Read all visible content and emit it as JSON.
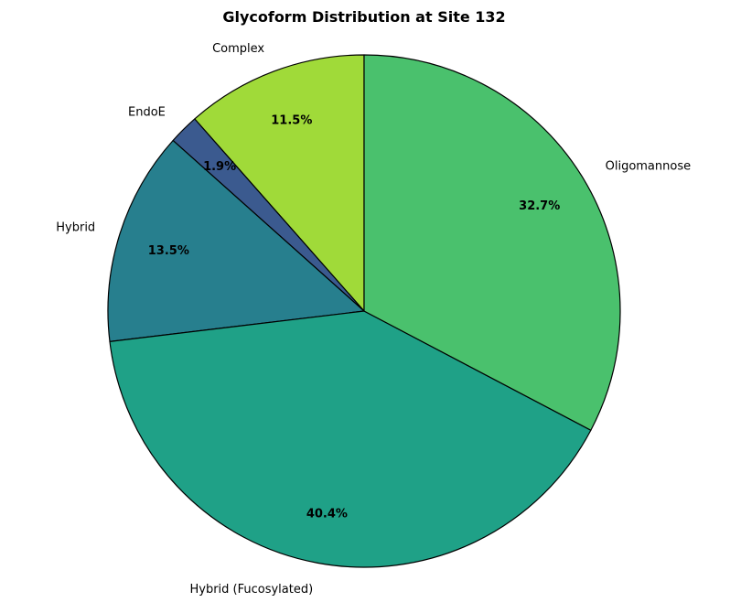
{
  "chart_data": {
    "type": "pie",
    "title": "Glycoform Distribution at Site 132",
    "start_angle_deg": 90,
    "direction": "counterclockwise",
    "slices": [
      {
        "label": "Complex",
        "value": 11.5,
        "pct_label": "11.5%",
        "color": "#a0da39"
      },
      {
        "label": "EndoE",
        "value": 1.9,
        "pct_label": "1.9%",
        "color": "#3b5a8f"
      },
      {
        "label": "Hybrid",
        "value": 13.5,
        "pct_label": "13.5%",
        "color": "#277f8e"
      },
      {
        "label": "Hybrid (Fucosylated)",
        "value": 40.4,
        "pct_label": "40.4%",
        "color": "#1fa187"
      },
      {
        "label": "Oligomannose",
        "value": 32.7,
        "pct_label": "32.7%",
        "color": "#4ac16d"
      }
    ]
  }
}
